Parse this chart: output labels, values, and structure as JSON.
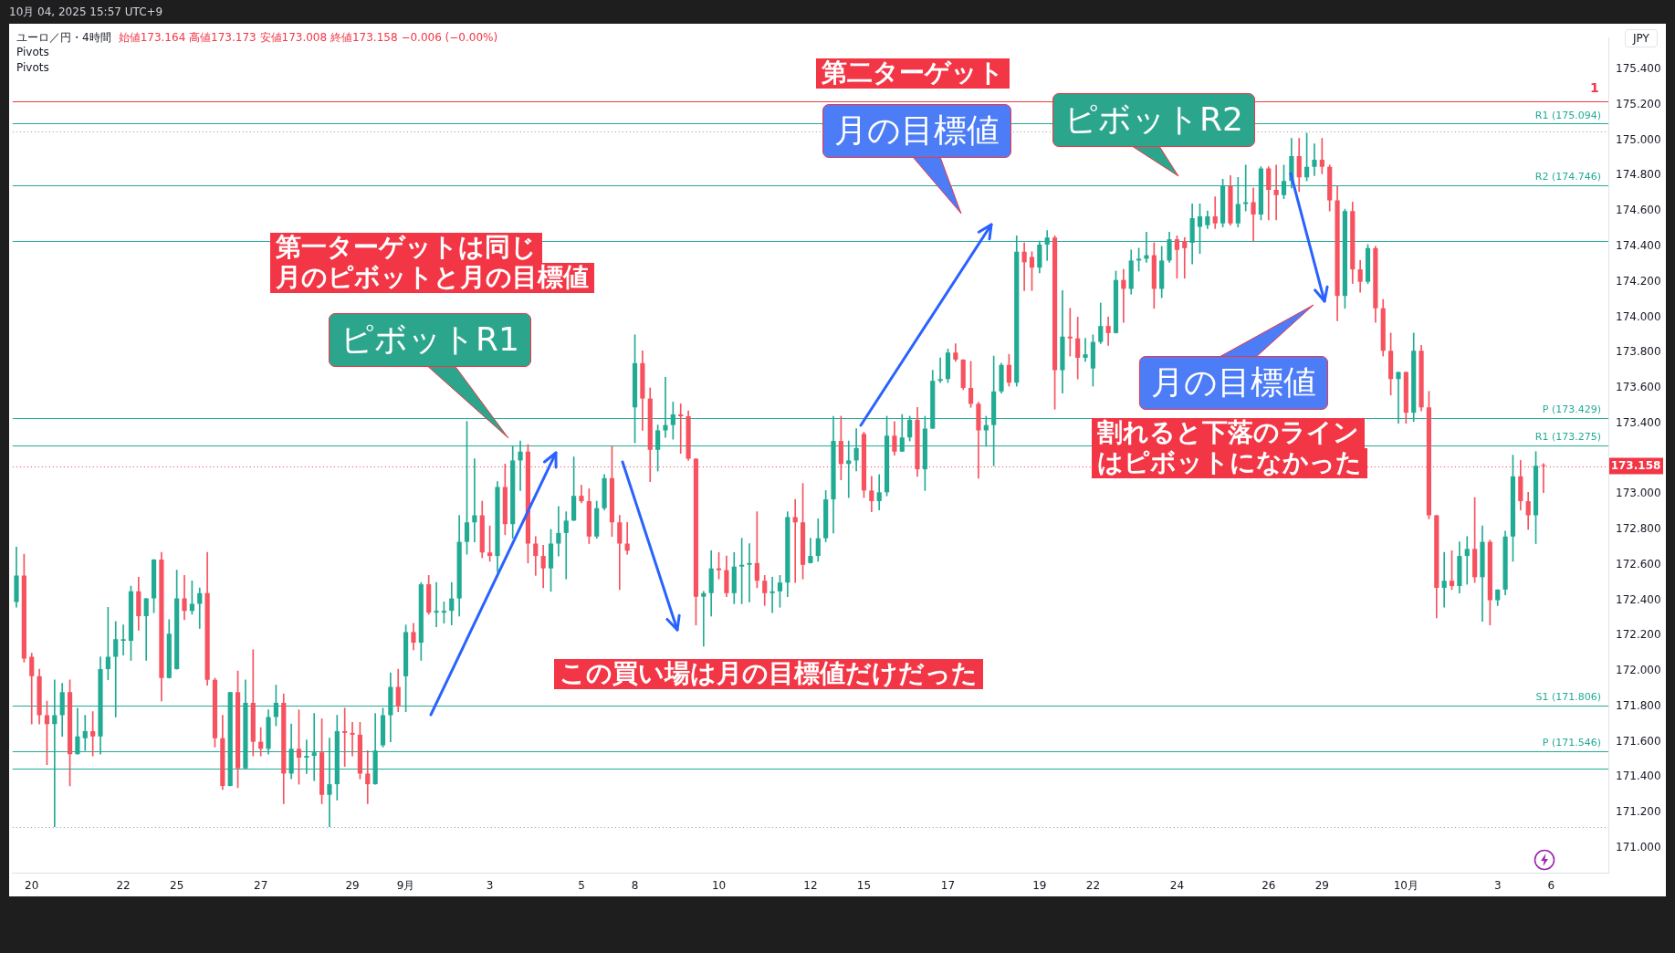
{
  "chart_data": {
    "type": "candlestick",
    "title": "ユーロ／円・4時間",
    "subtitle": "始値173.164 高値173.173 安値173.008 終値173.158 −0.006 (−0.00%)",
    "ylabel": "JPY",
    "categories": [
      null,
      null,
      "20",
      null,
      null,
      null,
      null,
      null,
      null,
      null,
      null,
      null,
      null,
      null,
      "22",
      null,
      null,
      null,
      null,
      null,
      null,
      "25",
      null,
      null,
      null,
      null,
      null,
      null,
      null,
      null,
      null,
      null,
      "27",
      null,
      null,
      null,
      null,
      null,
      null,
      null,
      null,
      null,
      null,
      null,
      "29",
      null,
      null,
      null,
      null,
      null,
      null,
      "9月",
      null,
      null,
      null,
      null,
      null,
      null,
      null,
      null,
      null,
      null,
      "3",
      null,
      null,
      null,
      null,
      null,
      null,
      null,
      null,
      null,
      null,
      null,
      "5",
      null,
      null,
      null,
      null,
      null,
      null,
      "8",
      null,
      null,
      null,
      null,
      null,
      null,
      null,
      null,
      null,
      null,
      "10",
      null,
      null,
      null,
      null,
      null,
      null,
      null,
      null,
      null,
      null,
      null,
      "12",
      null,
      null,
      null,
      null,
      null,
      null,
      "15",
      null,
      null,
      null,
      null,
      null,
      null,
      null,
      null,
      null,
      null,
      "17",
      null,
      null,
      null,
      null,
      null,
      null,
      null,
      null,
      null,
      null,
      null,
      "19",
      null,
      null,
      null,
      null,
      null,
      null,
      "22",
      null,
      null,
      null,
      null,
      null,
      null,
      null,
      null,
      null,
      null,
      "24",
      null,
      null,
      null,
      null,
      null,
      null,
      null,
      null,
      null,
      null,
      null,
      "26",
      null,
      null,
      null,
      null,
      null,
      null,
      "29",
      null,
      null,
      null,
      null,
      null,
      null,
      null,
      null,
      null,
      null,
      "10月",
      null,
      null,
      null,
      null,
      null,
      null,
      null,
      null,
      null,
      null,
      null,
      "3",
      null,
      null,
      null,
      null,
      null,
      null,
      "6",
      null,
      null,
      null,
      null,
      null,
      null,
      null
    ],
    "ohlc": [
      [
        172.39,
        172.7,
        172.36,
        172.54
      ],
      [
        172.54,
        172.66,
        172.05,
        172.07
      ],
      [
        172.08,
        172.1,
        171.7,
        171.97
      ],
      [
        171.97,
        172.01,
        171.7,
        171.75
      ],
      [
        171.75,
        171.83,
        171.47,
        171.7
      ],
      [
        171.7,
        171.95,
        171.12,
        171.75
      ],
      [
        171.75,
        171.93,
        171.63,
        171.88
      ],
      [
        171.88,
        171.95,
        171.35,
        171.53
      ],
      [
        171.53,
        171.79,
        171.53,
        171.63
      ],
      [
        171.62,
        171.75,
        171.55,
        171.66
      ],
      [
        171.66,
        171.77,
        171.52,
        171.63
      ],
      [
        171.63,
        172.08,
        171.53,
        172.01
      ],
      [
        172.01,
        172.36,
        171.95,
        172.08
      ],
      [
        172.08,
        172.28,
        171.74,
        172.18
      ],
      [
        172.17,
        172.26,
        172.09,
        172.18
      ],
      [
        172.17,
        172.48,
        172.06,
        172.45
      ],
      [
        172.45,
        172.53,
        172.23,
        172.31
      ],
      [
        172.31,
        172.41,
        172.06,
        172.41
      ],
      [
        172.41,
        172.63,
        172.33,
        172.63
      ],
      [
        172.63,
        172.67,
        171.83,
        171.96
      ],
      [
        171.96,
        172.29,
        171.96,
        172.21
      ],
      [
        172.01,
        172.57,
        172.01,
        172.41
      ],
      [
        172.41,
        172.54,
        172.29,
        172.34
      ],
      [
        172.34,
        172.51,
        172.32,
        172.38
      ],
      [
        172.38,
        172.47,
        172.24,
        172.44
      ],
      [
        172.44,
        172.67,
        171.92,
        171.95
      ],
      [
        171.95,
        171.96,
        171.57,
        171.62
      ],
      [
        171.62,
        171.75,
        171.33,
        171.35
      ],
      [
        171.35,
        171.88,
        171.35,
        171.88
      ],
      [
        171.88,
        172.0,
        171.34,
        171.45
      ],
      [
        171.45,
        171.95,
        171.45,
        171.82
      ],
      [
        171.82,
        172.12,
        171.52,
        171.6
      ],
      [
        171.6,
        171.68,
        171.52,
        171.56
      ],
      [
        171.56,
        171.78,
        171.53,
        171.74
      ],
      [
        171.74,
        171.92,
        171.69,
        171.82
      ],
      [
        171.82,
        171.87,
        171.25,
        171.42
      ],
      [
        171.42,
        171.7,
        171.39,
        171.56
      ],
      [
        171.56,
        171.78,
        171.36,
        171.51
      ],
      [
        171.51,
        171.61,
        171.42,
        171.52
      ],
      [
        171.52,
        171.76,
        171.38,
        171.54
      ],
      [
        171.54,
        171.73,
        171.25,
        171.3
      ],
      [
        171.3,
        171.62,
        171.12,
        171.36
      ],
      [
        171.36,
        171.75,
        171.27,
        171.66
      ],
      [
        171.66,
        171.79,
        171.46,
        171.65
      ],
      [
        171.65,
        171.71,
        171.52,
        171.64
      ],
      [
        171.64,
        171.71,
        171.39,
        171.42
      ],
      [
        171.42,
        171.55,
        171.25,
        171.36
      ],
      [
        171.36,
        171.76,
        171.36,
        171.55
      ],
      [
        171.58,
        171.79,
        171.57,
        171.75
      ],
      [
        171.75,
        171.99,
        171.6,
        171.91
      ],
      [
        171.91,
        172.01,
        171.77,
        171.8
      ],
      [
        171.97,
        172.26,
        171.77,
        172.22
      ],
      [
        172.22,
        172.27,
        172.12,
        172.16
      ],
      [
        172.16,
        172.5,
        172.06,
        172.49
      ],
      [
        172.49,
        172.54,
        172.32,
        172.33
      ],
      [
        172.33,
        172.5,
        172.25,
        172.34
      ],
      [
        172.33,
        172.39,
        172.27,
        172.34
      ],
      [
        172.34,
        172.5,
        172.26,
        172.41
      ],
      [
        172.41,
        172.88,
        172.31,
        172.73
      ],
      [
        172.73,
        173.41,
        172.66,
        172.84
      ],
      [
        172.84,
        173.2,
        172.73,
        172.88
      ],
      [
        172.88,
        172.96,
        172.64,
        172.67
      ],
      [
        172.67,
        172.82,
        172.62,
        172.65
      ],
      [
        172.65,
        173.07,
        172.56,
        173.04
      ],
      [
        173.04,
        173.17,
        172.77,
        172.83
      ],
      [
        172.83,
        173.27,
        172.75,
        173.19
      ],
      [
        173.19,
        173.3,
        173.02,
        173.24
      ],
      [
        173.24,
        173.28,
        172.61,
        172.72
      ],
      [
        172.72,
        172.76,
        172.54,
        172.65
      ],
      [
        172.65,
        172.71,
        172.47,
        172.58
      ],
      [
        172.58,
        172.8,
        172.45,
        172.72
      ],
      [
        172.72,
        172.93,
        172.65,
        172.78
      ],
      [
        172.78,
        172.9,
        172.52,
        172.85
      ],
      [
        172.85,
        173.21,
        172.85,
        172.99
      ],
      [
        172.99,
        173.05,
        172.95,
        172.96
      ],
      [
        172.96,
        173.03,
        172.72,
        172.76
      ],
      [
        172.76,
        172.96,
        172.75,
        172.92
      ],
      [
        172.92,
        173.11,
        172.91,
        173.09
      ],
      [
        173.09,
        173.27,
        172.76,
        172.84
      ],
      [
        172.84,
        172.88,
        172.46,
        172.72
      ],
      [
        172.72,
        172.84,
        172.66,
        172.68
      ],
      [
        173.49,
        173.9,
        173.29,
        173.74
      ],
      [
        173.74,
        173.81,
        173.36,
        173.54
      ],
      [
        173.54,
        173.6,
        173.07,
        173.25
      ],
      [
        173.25,
        173.39,
        173.13,
        173.36
      ],
      [
        173.36,
        173.66,
        173.32,
        173.39
      ],
      [
        173.39,
        173.52,
        173.31,
        173.45
      ],
      [
        173.45,
        173.51,
        173.23,
        173.44
      ],
      [
        173.44,
        173.47,
        173.19,
        173.2
      ],
      [
        173.2,
        173.2,
        172.26,
        172.42
      ],
      [
        172.42,
        172.45,
        172.14,
        172.44
      ],
      [
        172.44,
        172.68,
        172.31,
        172.58
      ],
      [
        172.58,
        172.67,
        172.52,
        172.57
      ],
      [
        172.57,
        172.65,
        172.42,
        172.44
      ],
      [
        172.44,
        172.67,
        172.38,
        172.59
      ],
      [
        172.59,
        172.75,
        172.38,
        172.6
      ],
      [
        172.6,
        172.72,
        172.39,
        172.61
      ],
      [
        172.61,
        172.9,
        172.47,
        172.51
      ],
      [
        172.51,
        172.54,
        172.37,
        172.44
      ],
      [
        172.44,
        172.53,
        172.33,
        172.45
      ],
      [
        172.45,
        172.54,
        172.36,
        172.5
      ],
      [
        172.5,
        172.9,
        172.42,
        172.87
      ],
      [
        172.87,
        172.97,
        172.5,
        172.84
      ],
      [
        172.84,
        173.06,
        172.52,
        172.6
      ],
      [
        172.61,
        172.75,
        172.61,
        172.65
      ],
      [
        172.65,
        172.86,
        172.62,
        172.75
      ],
      [
        172.75,
        173.02,
        172.73,
        172.97
      ],
      [
        172.97,
        173.44,
        172.78,
        173.3
      ],
      [
        173.3,
        173.44,
        173.08,
        173.17
      ],
      [
        173.17,
        173.3,
        172.98,
        173.19
      ],
      [
        173.19,
        173.37,
        173.13,
        173.26
      ],
      [
        173.34,
        173.35,
        172.98,
        173.02
      ],
      [
        173.02,
        173.1,
        172.9,
        172.96
      ],
      [
        172.96,
        173.11,
        172.91,
        173.01
      ],
      [
        173.01,
        173.44,
        172.99,
        173.33
      ],
      [
        173.33,
        173.41,
        173.22,
        173.24
      ],
      [
        173.24,
        173.45,
        173.24,
        173.32
      ],
      [
        173.32,
        173.44,
        173.3,
        173.42
      ],
      [
        173.42,
        173.49,
        173.1,
        173.14
      ],
      [
        173.14,
        173.44,
        173.02,
        173.37
      ],
      [
        173.37,
        173.7,
        173.37,
        173.64
      ],
      [
        173.64,
        173.77,
        173.63,
        173.65
      ],
      [
        173.65,
        173.82,
        173.63,
        173.8
      ],
      [
        173.8,
        173.85,
        173.75,
        173.76
      ],
      [
        173.76,
        173.76,
        173.59,
        173.6
      ],
      [
        173.6,
        173.75,
        173.49,
        173.51
      ],
      [
        173.51,
        173.52,
        173.09,
        173.36
      ],
      [
        173.36,
        173.44,
        173.27,
        173.39
      ],
      [
        173.39,
        173.78,
        173.16,
        173.58
      ],
      [
        173.58,
        173.74,
        173.57,
        173.73
      ],
      [
        173.73,
        173.79,
        173.61,
        173.63
      ],
      [
        173.63,
        174.46,
        173.61,
        174.37
      ],
      [
        174.37,
        174.42,
        174.15,
        174.31
      ],
      [
        174.34,
        174.37,
        174.15,
        174.28
      ],
      [
        174.28,
        174.43,
        174.25,
        174.41
      ],
      [
        174.41,
        174.49,
        174.32,
        174.45
      ],
      [
        174.45,
        174.46,
        173.48,
        173.7
      ],
      [
        173.7,
        174.15,
        173.57,
        173.89
      ],
      [
        173.89,
        174.05,
        173.78,
        173.88
      ],
      [
        173.88,
        174.0,
        173.65,
        173.77
      ],
      [
        173.77,
        173.88,
        173.75,
        173.79
      ],
      [
        173.71,
        173.9,
        173.61,
        173.86
      ],
      [
        173.86,
        174.08,
        173.85,
        173.95
      ],
      [
        173.95,
        174.0,
        173.84,
        173.91
      ],
      [
        173.91,
        174.26,
        173.91,
        174.21
      ],
      [
        174.21,
        174.27,
        173.97,
        174.16
      ],
      [
        174.16,
        174.38,
        174.13,
        174.32
      ],
      [
        174.32,
        174.39,
        174.26,
        174.33
      ],
      [
        174.33,
        174.48,
        174.31,
        174.35
      ],
      [
        174.35,
        174.42,
        174.05,
        174.16
      ],
      [
        174.16,
        174.4,
        174.11,
        174.32
      ],
      [
        174.32,
        174.48,
        174.31,
        174.44
      ],
      [
        174.44,
        174.46,
        174.22,
        174.38
      ],
      [
        174.43,
        174.45,
        174.22,
        174.39
      ],
      [
        174.42,
        174.64,
        174.3,
        174.56
      ],
      [
        174.51,
        174.64,
        174.36,
        174.57
      ],
      [
        174.52,
        174.6,
        174.5,
        174.57
      ],
      [
        174.57,
        174.68,
        174.5,
        174.53
      ],
      [
        174.53,
        174.78,
        174.51,
        174.74
      ],
      [
        174.74,
        174.8,
        174.52,
        174.53
      ],
      [
        174.53,
        174.79,
        174.51,
        174.64
      ],
      [
        174.64,
        174.86,
        174.6,
        174.65
      ],
      [
        174.65,
        174.73,
        174.43,
        174.58
      ],
      [
        174.58,
        174.85,
        174.55,
        174.84
      ],
      [
        174.84,
        174.85,
        174.55,
        174.72
      ],
      [
        174.72,
        174.86,
        174.55,
        174.69
      ],
      [
        174.69,
        174.86,
        174.67,
        174.77
      ],
      [
        174.77,
        175.01,
        174.73,
        174.91
      ],
      [
        174.91,
        175.01,
        174.71,
        174.79
      ],
      [
        174.79,
        175.04,
        174.77,
        174.85
      ],
      [
        174.85,
        174.98,
        174.8,
        174.89
      ],
      [
        174.89,
        175.01,
        174.81,
        174.85
      ],
      [
        174.85,
        174.86,
        174.6,
        174.66
      ],
      [
        174.66,
        174.74,
        173.98,
        174.12
      ],
      [
        174.12,
        174.61,
        174.05,
        174.6
      ],
      [
        174.6,
        174.65,
        174.19,
        174.27
      ],
      [
        174.27,
        174.32,
        174.14,
        174.2
      ],
      [
        174.2,
        174.41,
        174.19,
        174.39
      ],
      [
        174.39,
        174.4,
        173.97,
        174.05
      ],
      [
        174.05,
        174.1,
        173.78,
        173.81
      ],
      [
        173.81,
        173.91,
        173.56,
        173.65
      ],
      [
        173.65,
        173.69,
        173.4,
        173.69
      ],
      [
        173.69,
        173.69,
        173.4,
        173.46
      ],
      [
        173.46,
        173.91,
        173.41,
        173.81
      ],
      [
        173.81,
        173.84,
        173.47,
        173.49
      ],
      [
        173.49,
        173.58,
        172.86,
        172.88
      ],
      [
        172.88,
        172.88,
        172.3,
        172.47
      ],
      [
        172.47,
        172.67,
        172.36,
        172.51
      ],
      [
        172.51,
        172.68,
        172.46,
        172.48
      ],
      [
        172.48,
        172.73,
        172.44,
        172.65
      ],
      [
        172.65,
        172.76,
        172.49,
        172.69
      ],
      [
        172.69,
        172.98,
        172.5,
        172.53
      ],
      [
        172.53,
        172.82,
        172.28,
        172.73
      ],
      [
        172.73,
        172.74,
        172.26,
        172.4
      ],
      [
        172.4,
        172.46,
        172.37,
        172.46
      ],
      [
        172.46,
        172.79,
        172.43,
        172.76
      ],
      [
        172.76,
        173.22,
        172.62,
        173.1
      ],
      [
        173.1,
        173.19,
        172.91,
        172.96
      ],
      [
        172.96,
        173.01,
        172.8,
        172.88
      ],
      [
        172.88,
        173.24,
        172.72,
        173.16
      ],
      [
        173.164,
        173.173,
        173.008,
        173.158
      ],
      null,
      null,
      null,
      null,
      null,
      null,
      null,
      null
    ],
    "ylim": [
      170.86,
      175.58
    ],
    "yticks": [
      {
        "value": 171.0,
        "label": "171.000"
      },
      {
        "value": 171.2,
        "label": "171.200"
      },
      {
        "value": 171.4,
        "label": "171.400"
      },
      {
        "value": 171.6,
        "label": "171.600"
      },
      {
        "value": 171.8,
        "label": "171.800"
      },
      {
        "value": 172.0,
        "label": "172.000"
      },
      {
        "value": 172.2,
        "label": "172.200"
      },
      {
        "value": 172.4,
        "label": "172.400"
      },
      {
        "value": 172.6,
        "label": "172.600"
      },
      {
        "value": 172.8,
        "label": "172.800"
      },
      {
        "value": 173.0,
        "label": "173.000"
      },
      {
        "value": 173.4,
        "label": "173.400"
      },
      {
        "value": 173.6,
        "label": "173.600"
      },
      {
        "value": 173.8,
        "label": "173.800"
      },
      {
        "value": 174.0,
        "label": "174.000"
      },
      {
        "value": 174.2,
        "label": "174.200"
      },
      {
        "value": 174.4,
        "label": "174.400"
      },
      {
        "value": 174.6,
        "label": "174.600"
      },
      {
        "value": 174.8,
        "label": "174.800"
      },
      {
        "value": 175.0,
        "label": "175.000"
      },
      {
        "value": 175.2,
        "label": "175.200"
      },
      {
        "value": 175.4,
        "label": "175.400"
      }
    ],
    "ref_lines": [
      {
        "axis": "y",
        "value": 175.22,
        "color": "#f23645"
      },
      {
        "axis": "y",
        "value": 175.05,
        "color": "#9598a1",
        "line_style": "dotted"
      },
      {
        "axis": "y",
        "value": 175.094,
        "label": "R1 (175.094)",
        "color": "#22ab94"
      },
      {
        "axis": "y",
        "value": 174.746,
        "label": "R2 (174.746)",
        "color": "#22ab94"
      },
      {
        "axis": "y",
        "value": 174.43,
        "color": "#22ab94"
      },
      {
        "axis": "y",
        "value": 173.429,
        "label": "P (173.429)",
        "color": "#22ab94"
      },
      {
        "axis": "y",
        "value": 173.275,
        "label": "R1 (173.275)",
        "color": "#22ab94"
      },
      {
        "axis": "y",
        "value": 173.158,
        "label": "173.158",
        "color": "#f23645",
        "line_style": "dotted"
      },
      {
        "axis": "y",
        "value": 171.806,
        "label": "S1 (171.806)",
        "color": "#22ab94"
      },
      {
        "axis": "y",
        "value": 171.546,
        "label": "P (171.546)",
        "color": "#22ab94"
      },
      {
        "axis": "y",
        "value": 171.45,
        "color": "#22ab94"
      },
      {
        "axis": "y",
        "value": 171.12,
        "color": "#9598a1",
        "line_style": "dotted"
      }
    ],
    "annotations": [
      "10月 04, 2025 15:57 UTC+9",
      "Pivots",
      "Pivots",
      "第二ターゲット",
      "月の目標値",
      "ピボットR2",
      "第一ターゲットは同じ",
      "月のピボットと月の目標値",
      "ピボットR1",
      "月の目標値",
      "割れると下落のライン",
      "はピボットになかった",
      "この買い場は月の目標値だけだった",
      "1"
    ]
  }
}
